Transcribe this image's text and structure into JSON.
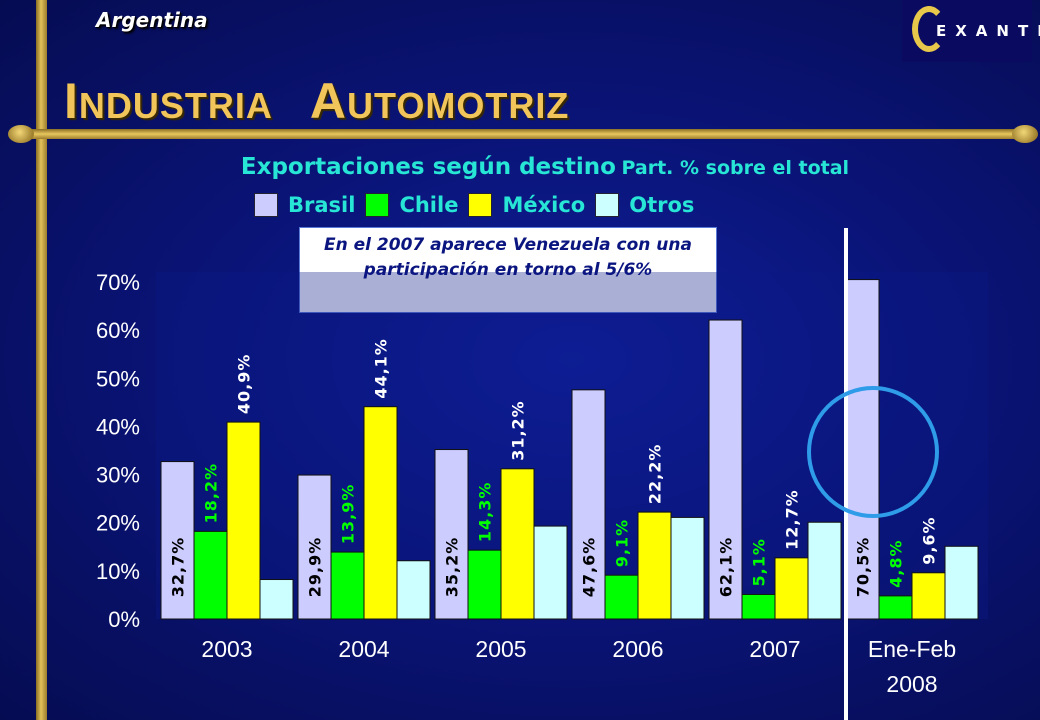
{
  "header": {
    "country": "Argentina",
    "title": "INDUSTRIA AUTOMOTRIZ",
    "logo_text": "EXANTE"
  },
  "note": "En el 2007 aparece Venezuela con una participación en torno al 5/6%",
  "colors": {
    "background": "#0a1478",
    "title": "#f1c55a",
    "accent": "#27e6d5",
    "highlight_ring": "#2e9ce8"
  },
  "chart_data": {
    "type": "bar",
    "title": "Exportaciones según destino",
    "subtitle": "Part. % sobre el total",
    "categories": [
      "2003",
      "2004",
      "2005",
      "2006",
      "2007",
      "Ene-Feb 2008"
    ],
    "series": [
      {
        "name": "Brasil",
        "color": "#ccccff",
        "values": [
          32.7,
          29.9,
          35.2,
          47.6,
          62.1,
          70.5
        ],
        "labels": [
          "32,7%",
          "29,9%",
          "35,2%",
          "47,6%",
          "62,1%",
          "70,5%"
        ],
        "label_color": "#000000"
      },
      {
        "name": "Chile",
        "color": "#00ff00",
        "values": [
          18.2,
          13.9,
          14.3,
          9.1,
          5.1,
          4.8
        ],
        "labels": [
          "18,2%",
          "13,9%",
          "14,3%",
          "9,1%",
          "5,1%",
          "4,8%"
        ],
        "label_color": "#00ff00"
      },
      {
        "name": "México",
        "color": "#ffff00",
        "values": [
          40.9,
          44.1,
          31.2,
          22.2,
          12.7,
          9.6
        ],
        "labels": [
          "40,9%",
          "44,1%",
          "31,2%",
          "22,2%",
          "12,7%",
          "9,6%"
        ],
        "label_color": "#ffffff"
      },
      {
        "name": "Otros",
        "color": "#ccffff",
        "values": [
          8.2,
          12.1,
          19.3,
          21.1,
          20.1,
          15.1
        ],
        "labels": [
          "",
          "",
          "",
          "",
          "",
          ""
        ],
        "label_color": "#ffffff"
      }
    ],
    "yticks": [
      "0%",
      "10%",
      "20%",
      "30%",
      "40%",
      "50%",
      "60%",
      "70%"
    ],
    "ylim": [
      0,
      70
    ],
    "legend": "top"
  }
}
